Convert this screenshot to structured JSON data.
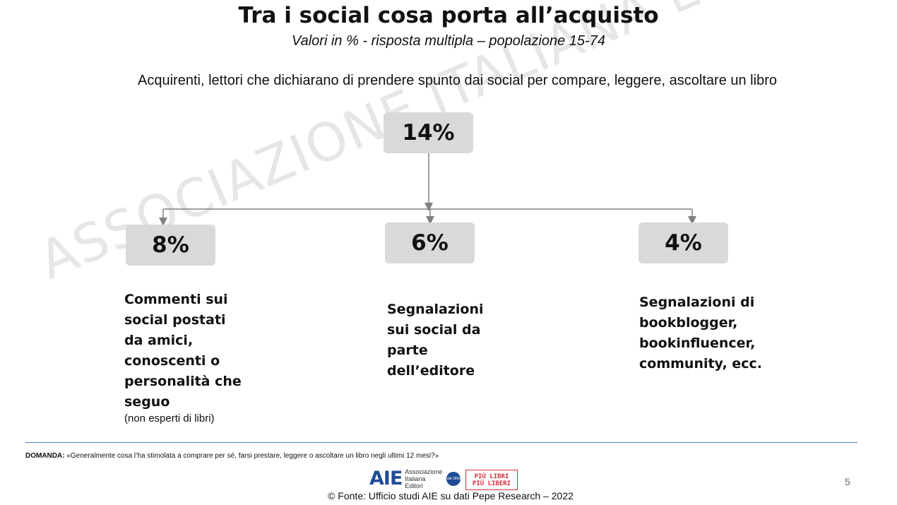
{
  "title": "Tra i social cosa porta all’acquisto",
  "subtitle": "Valori in % - risposta multipla – popolazione 15-74",
  "lead": "Acquirenti, lettori che dichiarano di prendere spunto dai social per compare, leggere, ascoltare un libro",
  "watermark": "ASSOCIAZIONE ITALIANA EDITORI",
  "diagram": {
    "top": {
      "value": "14%"
    },
    "children": [
      {
        "value": "8%",
        "lines": [
          "Commenti sui",
          "social postati",
          "da amici,",
          "conoscenti o",
          "personalità che",
          "seguo"
        ],
        "note": "(non esperti di libri)"
      },
      {
        "value": "6%",
        "lines": [
          "Segnalazioni",
          "sui social da",
          "parte",
          "dell’editore"
        ]
      },
      {
        "value": "4%",
        "lines": [
          "Segnalazioni di",
          "bookblogger,",
          "bookinfluencer,",
          "community, ecc."
        ]
      }
    ]
  },
  "footer": {
    "domanda_label": "DOMANDA:",
    "domanda_text": " «Generalmente cosa l’ha stimolata a comprare per sé, farsi prestare, leggere o ascoltare un libro negli ultimi 12 mesi?»",
    "aie_mark": "AIE",
    "aie_lines": [
      "Associazione",
      "Italiana",
      "Editori"
    ],
    "aie_seal": "dal 1869",
    "plpl_lines": [
      "PIÙ LIBRI",
      "PIÙ LIBERI"
    ],
    "source": "© Fonte: Ufficio studi AIE su dati Pepe Research – 2022",
    "page_number": "5"
  },
  "colors": {
    "box": "#d9d9d9",
    "connector": "#808080",
    "rule": "#4a7fc1",
    "aie_blue": "#1f4c94",
    "plpl_red": "#d6303a"
  }
}
